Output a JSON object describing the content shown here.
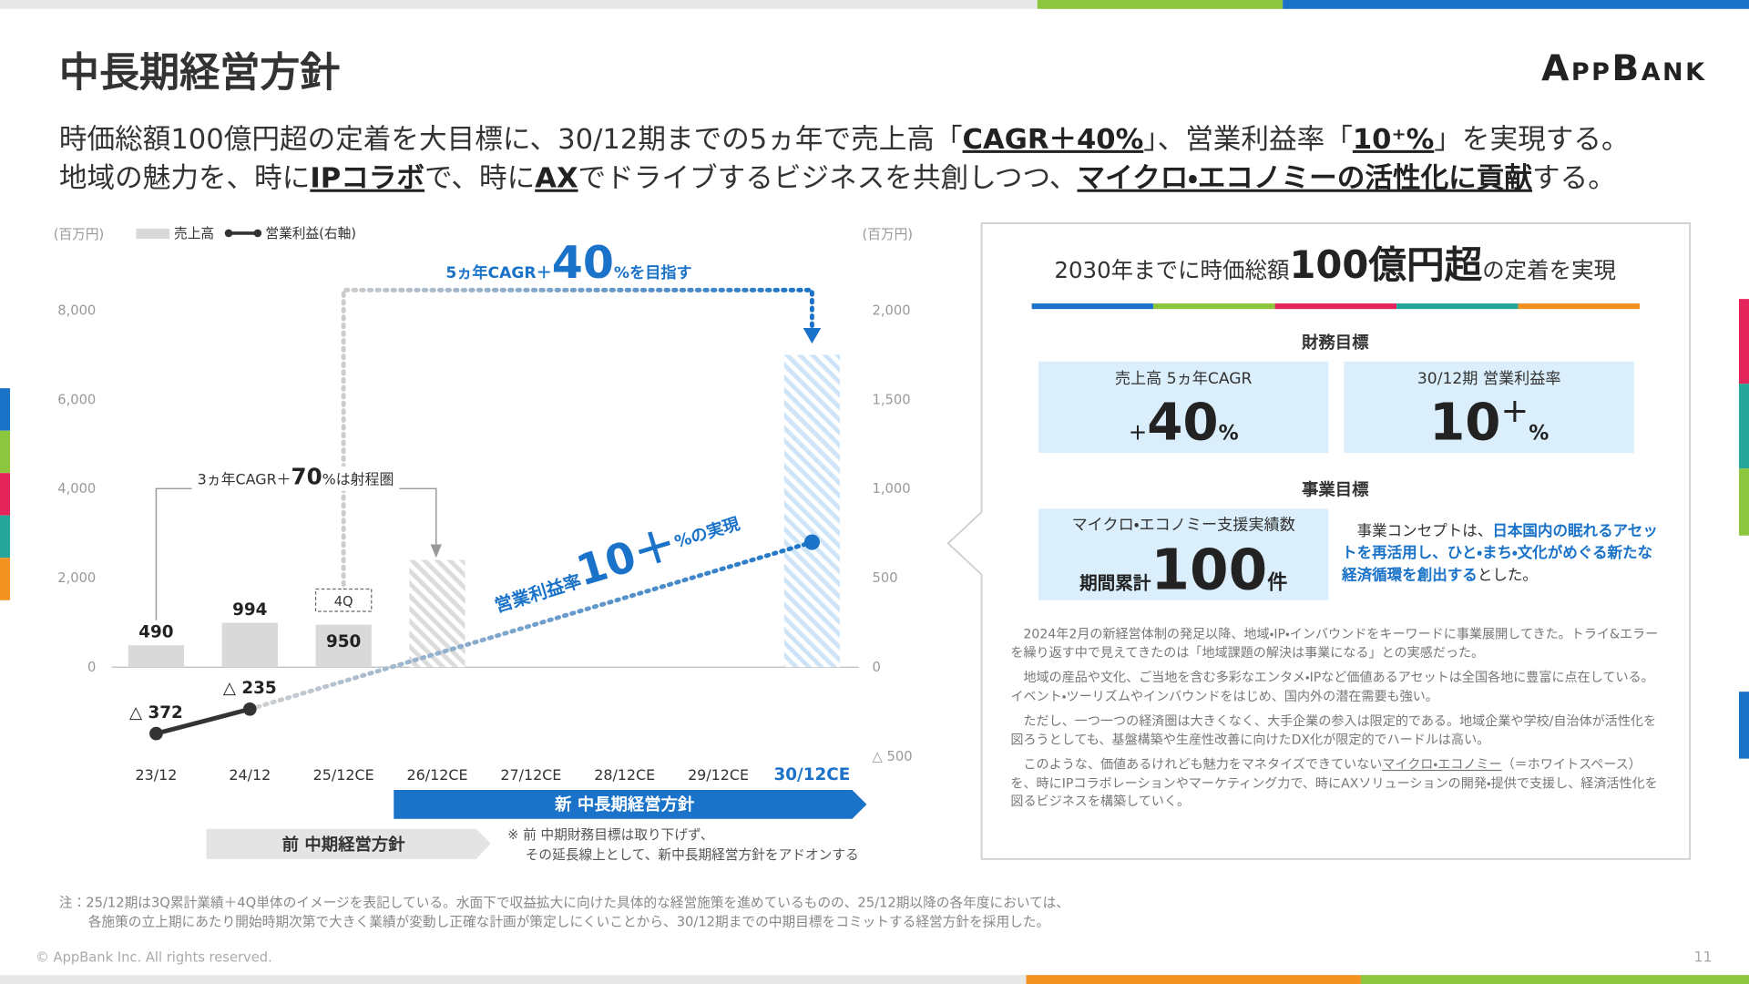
{
  "header": {
    "title": "中長期経営方針",
    "logo": "AppBank"
  },
  "lead": [
    [
      "時価総額100億円超の定着を大目標に、30/12期までの5ヵ年で売上高「",
      "CAGR＋40%",
      "」、営業利益率「",
      "10⁺%",
      "」を実現する。"
    ],
    [
      "地域の魅力を、時に",
      "IPコラボ",
      "で、時に",
      "AX",
      "でドライブするビジネスを共創しつつ、",
      "マイクロ・エコノミーの活性化に貢献",
      "する。"
    ]
  ],
  "chart_data": {
    "type": "bar-line",
    "y_unit": "(百万円)",
    "y2_unit": "(百万円)",
    "categories": [
      "23/12",
      "24/12",
      "25/12CE",
      "26/12CE",
      "27/12CE",
      "28/12CE",
      "29/12CE",
      "30/12CE"
    ],
    "series": [
      {
        "name": "売上高",
        "color": "#d9d9d9",
        "type": "bar",
        "values": [
          490,
          994,
          950,
          2400,
          null,
          null,
          null,
          7000
        ],
        "value_labels": [
          "490",
          "994",
          "950",
          null,
          null,
          null,
          null,
          null
        ]
      },
      {
        "name": "営業利益(右軸)",
        "color": "#333333",
        "type": "line",
        "axis": "y2",
        "values": [
          -372,
          -235,
          null,
          null,
          null,
          null,
          null,
          700
        ],
        "value_labels": [
          "△ 372",
          "△ 235",
          null,
          null,
          null,
          null,
          null,
          null
        ]
      }
    ],
    "accent_color": "#1a73c8",
    "ylim": [
      -2000,
      8000
    ],
    "yticks": [
      0,
      {
        "value": 2000,
        "label": "2,000"
      },
      {
        "value": 4000,
        "label": "4,000"
      },
      {
        "value": 6000,
        "label": "6,000"
      },
      {
        "value": 8000,
        "label": "8,000"
      }
    ],
    "y2lim": [
      -500,
      2000
    ],
    "y2ticks": [
      {
        "value": -500,
        "label": "△ 500"
      },
      0,
      500,
      {
        "value": 1000,
        "label": "1,000"
      },
      {
        "value": 1500,
        "label": "1,500"
      },
      {
        "value": 2000,
        "label": "2,000"
      }
    ],
    "grid": false,
    "annotations": {
      "q4": "4Q",
      "cagr5": [
        "5ヵ年CAGR＋",
        "40",
        "%を目指す"
      ],
      "cagr3": [
        "3ヵ年CAGR＋",
        "70",
        "%は射程圏"
      ],
      "margin": [
        "営業利益率",
        "10＋",
        "%の実現"
      ],
      "new_plan": "新 中長期経営方針",
      "old_plan": "前 中期経営方針",
      "note": [
        "※ 前 中期財務目標は取り下げず、",
        "その延長線上として、新中長期経営方針をアドオンする"
      ]
    }
  },
  "goal_box": {
    "title": [
      "2030年までに時価総額",
      "100億円超",
      "の定着を実現"
    ],
    "financial_heading": "財務目標",
    "cagr_label": "売上高 5ヵ年CAGR",
    "cagr_value": [
      "+",
      "40",
      "%"
    ],
    "margin_label": "30/12期 営業利益率",
    "margin_value": [
      "10",
      "+",
      "%"
    ],
    "business_heading": "事業目標",
    "support_label": "マイクロ・エコノミー支援実績数",
    "support_value": [
      "期間累計",
      "100",
      "件"
    ],
    "concept": [
      "事業コンセプトは、",
      "日本国内の眠れるアセットを再活用し、ひと・まち・文化がめぐる新たな経済循環を創出する",
      "とした。"
    ],
    "paragraphs": [
      [
        "2024年2月の新経営体制の発足以降、地域・IP・インバウンドをキーワードに事業展開してきた。トライ&エラーを繰り返す中で見えてきたのは「地域課題の解決は事業になる」との実感だった。"
      ],
      [
        "地域の産品や文化、ご当地を含む多彩なエンタメ・IPなど価値あるアセットは全国各地に豊富に点在している。イベント・ツーリズムやインバウンドをはじめ、国内外の潜在需要も強い。"
      ],
      [
        "ただし、一つ一つの経済圏は大きくなく、大手企業の参入は限定的である。地域企業や学校/自治体が活性化を図ろうとしても、基盤構築や生産性改善に向けたDX化が限定的でハードルは高い。"
      ],
      [
        "このような、価値あるけれども魅力をマネタイズできていない",
        "マイクロ・エコノミー",
        "（＝ホワイトスペース）を、時にIPコラボレーションやマーケティング力で、時にAXソリューションの開発・提供で支援し、経済活性化を図るビジネスを構築していく。"
      ]
    ]
  },
  "footnote": [
    "注：25/12期は3Q累計業績＋4Q単体のイメージを表記している。水面下で収益拡大に向けた具体的な経営施策を進めているものの、25/12期以降の各年度においては、",
    "各施策の立上期にあたり開始時期次第で大きく業績が変動し正確な計画が策定しにくいことから、30/12期までの中期目標をコミットする経営方針を採用した。"
  ],
  "copyright": "© AppBank Inc. All rights reserved.",
  "page_number": "11"
}
